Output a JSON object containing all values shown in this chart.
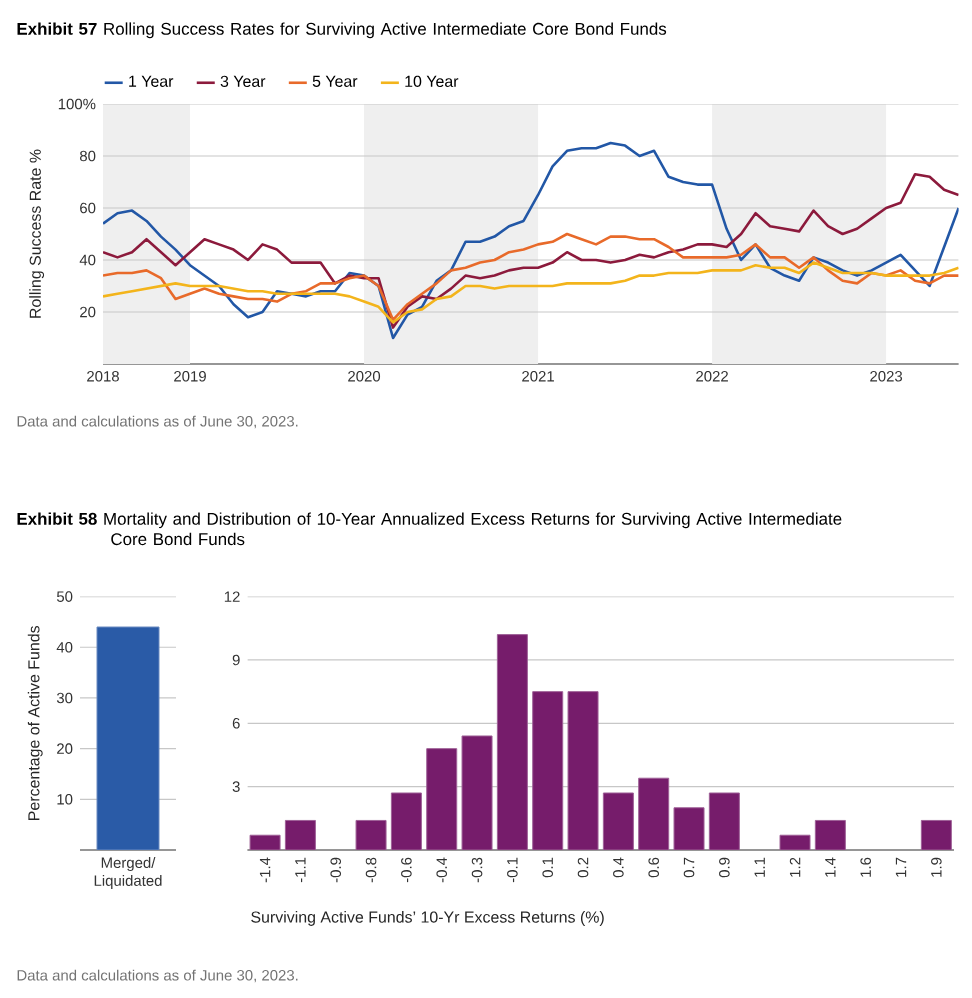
{
  "chart_data": [
    {
      "type": "line",
      "title": "**Exhibit 57** Rolling Success Rates for Surviving Active Intermediate Core Bond Funds",
      "ylabel": "Rolling Success Rate %",
      "legend": "top left",
      "grid": "y",
      "xlim": [
        "2018-07",
        "2023-06"
      ],
      "xticks": [
        {
          "value": "2018-07",
          "label": "2018"
        },
        "2019",
        "2020",
        "2021",
        "2022",
        "2023"
      ],
      "ylim": [
        0,
        100
      ],
      "yticks": [
        20,
        40,
        60,
        80,
        {
          "value": 100,
          "label": "100%"
        }
      ],
      "bands": [
        {
          "axis": "x",
          "from": "2018-07",
          "to": "2019-01",
          "color": "#efefef"
        },
        {
          "axis": "x",
          "from": "2020-01",
          "to": "2021-01",
          "color": "#efefef"
        },
        {
          "axis": "x",
          "from": "2022-01",
          "to": "2023-01",
          "color": "#efefef"
        }
      ],
      "x": [
        "2018-07",
        "2018-08",
        "2018-09",
        "2018-10",
        "2018-11",
        "2018-12",
        "2019-01",
        "2019-02",
        "2019-03",
        "2019-04",
        "2019-05",
        "2019-06",
        "2019-07",
        "2019-08",
        "2019-09",
        "2019-10",
        "2019-11",
        "2019-12",
        "2020-01",
        "2020-02",
        "2020-03",
        "2020-04",
        "2020-05",
        "2020-06",
        "2020-07",
        "2020-08",
        "2020-09",
        "2020-10",
        "2020-11",
        "2020-12",
        "2021-01",
        "2021-02",
        "2021-03",
        "2021-04",
        "2021-05",
        "2021-06",
        "2021-07",
        "2021-08",
        "2021-09",
        "2021-10",
        "2021-11",
        "2021-12",
        "2022-01",
        "2022-02",
        "2022-03",
        "2022-04",
        "2022-05",
        "2022-06",
        "2022-07",
        "2022-08",
        "2022-09",
        "2022-10",
        "2022-11",
        "2022-12",
        "2023-01",
        "2023-02",
        "2023-03",
        "2023-04",
        "2023-05",
        "2023-06"
      ],
      "series": [
        {
          "name": "1 Year",
          "color": "#2257a6",
          "values": [
            54,
            58,
            59,
            55,
            49,
            44,
            38,
            34,
            30,
            23,
            18,
            20,
            28,
            27,
            26,
            28,
            28,
            35,
            34,
            30,
            10,
            19,
            22,
            32,
            36,
            47,
            47,
            49,
            53,
            55,
            65,
            76,
            82,
            83,
            83,
            85,
            84,
            80,
            82,
            72,
            70,
            69,
            69,
            52,
            40,
            46,
            37,
            34,
            32,
            41,
            39,
            36,
            34,
            36,
            39,
            42,
            36,
            30,
            45,
            60
          ]
        },
        {
          "name": "3 Year",
          "color": "#8c1a3c",
          "values": [
            43,
            41,
            43,
            48,
            43,
            38,
            43,
            48,
            46,
            44,
            40,
            46,
            44,
            39,
            39,
            39,
            31,
            34,
            33,
            33,
            14,
            22,
            26,
            25,
            29,
            34,
            33,
            34,
            36,
            37,
            37,
            39,
            43,
            40,
            40,
            39,
            40,
            42,
            41,
            43,
            44,
            46,
            46,
            45,
            50,
            58,
            53,
            52,
            51,
            59,
            53,
            50,
            52,
            56,
            60,
            62,
            73,
            72,
            67,
            65
          ]
        },
        {
          "name": "5 Year",
          "color": "#e86a2a",
          "values": [
            34,
            35,
            35,
            36,
            33,
            25,
            27,
            29,
            27,
            26,
            25,
            25,
            24,
            27,
            28,
            31,
            31,
            33,
            34,
            30,
            17,
            23,
            27,
            31,
            36,
            37,
            39,
            40,
            43,
            44,
            46,
            47,
            50,
            48,
            46,
            49,
            49,
            48,
            48,
            45,
            41,
            41,
            41,
            41,
            42,
            46,
            41,
            41,
            37,
            41,
            36,
            32,
            31,
            35,
            34,
            36,
            32,
            31,
            34,
            34
          ]
        },
        {
          "name": "10 Year",
          "color": "#f3b41b",
          "values": [
            26,
            27,
            28,
            29,
            30,
            31,
            30,
            30,
            30,
            29,
            28,
            28,
            27,
            27,
            27,
            27,
            27,
            26,
            24,
            22,
            16,
            20,
            21,
            25,
            26,
            30,
            30,
            29,
            30,
            30,
            30,
            30,
            31,
            31,
            31,
            31,
            32,
            34,
            34,
            35,
            35,
            35,
            36,
            36,
            36,
            38,
            37,
            37,
            35,
            39,
            37,
            35,
            35,
            35,
            34,
            34,
            34,
            34,
            35,
            37
          ]
        }
      ],
      "annotations": [
        "Data and calculations as of June 30, 2023."
      ]
    },
    {
      "type": "bar",
      "title": "**Exhibit 58** Mortality and Distribution of 10-Year Annualized Excess Returns for Surviving Active Intermediate Core Bond Funds",
      "ylabel": "Percentage of Active Funds",
      "grid": "y",
      "categories": [
        "Merged/ Liquidated"
      ],
      "values": [
        44
      ],
      "color": "#2a5ba7",
      "ylim": [
        0,
        50
      ],
      "yticks": [
        10,
        20,
        30,
        40,
        50
      ],
      "annotations": [
        "Data and calculations as of June 30, 2023."
      ]
    },
    {
      "type": "bar",
      "xlabel": "Surviving Active Funds’ 10-Yr Excess Returns (%)",
      "grid": "y",
      "categories": [
        "-1.4",
        "-1.1",
        "-0.9",
        "-0.8",
        "-0.6",
        "-0.4",
        "-0.3",
        "-0.1",
        "0.1",
        "0.2",
        "0.4",
        "0.6",
        "0.7",
        "0.9",
        "1.1",
        "1.2",
        "1.4",
        "1.6",
        "1.7",
        "1.9"
      ],
      "values": [
        0.7,
        1.4,
        0,
        1.4,
        2.7,
        4.8,
        5.4,
        10.2,
        7.5,
        7.5,
        2.7,
        3.4,
        2.0,
        2.7,
        0,
        0.7,
        1.4,
        0,
        0,
        1.4
      ],
      "color": "#761c6b",
      "ylim": [
        0,
        12
      ],
      "yticks": [
        3,
        6,
        9,
        12
      ]
    }
  ]
}
